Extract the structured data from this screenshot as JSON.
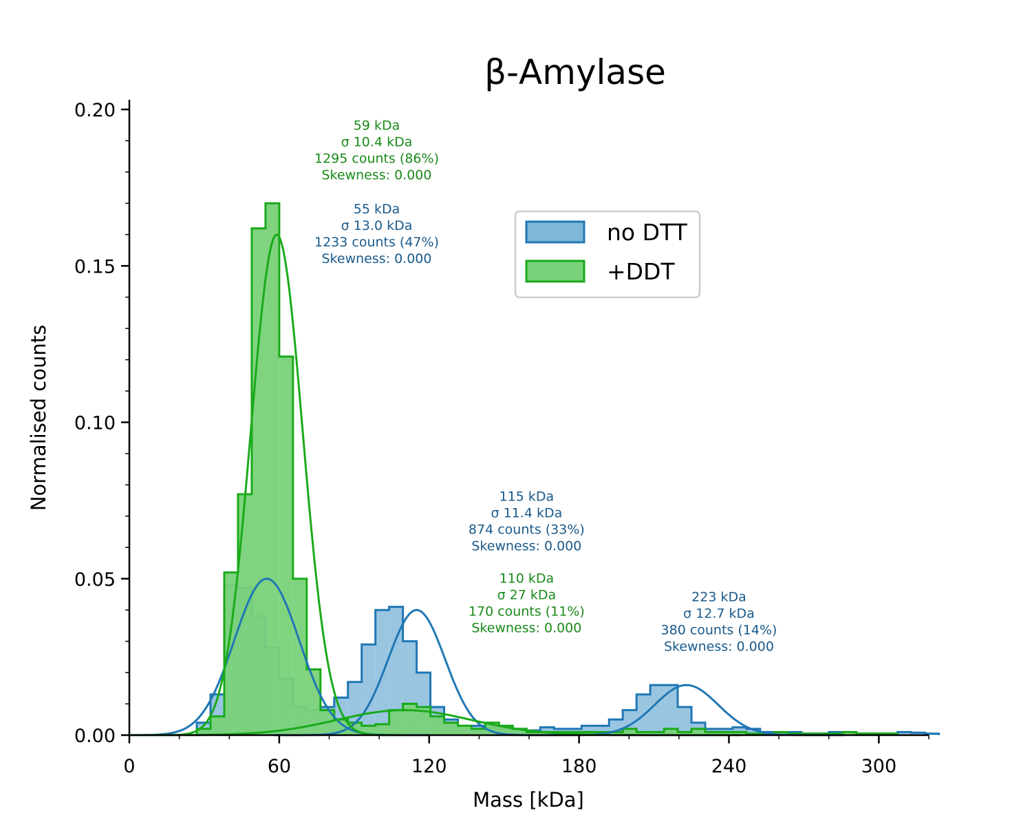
{
  "chart_data": {
    "type": "bar",
    "title": "β-Amylase",
    "xlabel": "Mass [kDa]",
    "ylabel": "Normalised counts",
    "xlim": [
      0,
      320
    ],
    "ylim": [
      0,
      0.2
    ],
    "x_ticks": [
      0,
      60,
      120,
      180,
      240,
      300
    ],
    "y_ticks": [
      0.0,
      0.05,
      0.1,
      0.15,
      0.2
    ],
    "y_tick_labels": [
      "0.00",
      "0.05",
      "0.10",
      "0.15",
      "0.20"
    ],
    "legend_position": "upper-center",
    "colors": {
      "no_dtt_fill": "#7fb6d9",
      "no_dtt_line": "#1f77b4",
      "ddt_fill": "#79d279",
      "ddt_line": "#1aaa1a",
      "no_dtt_text": "#1a5a8a",
      "ddt_text": "#1a8a1a"
    },
    "bin_width": 5.5,
    "series": [
      {
        "name": "no DTT",
        "key": "nodtt",
        "bin_start": 27,
        "values": [
          0.004,
          0.013,
          0.048,
          0.047,
          0.038,
          0.028,
          0.018,
          0.009,
          0.008,
          0.009,
          0.012,
          0.017,
          0.029,
          0.04,
          0.041,
          0.03,
          0.02,
          0.009,
          0.005,
          0.003,
          0.003,
          0.0025,
          0.002,
          0.002,
          0.0015,
          0.0025,
          0.002,
          0.002,
          0.003,
          0.003,
          0.005,
          0.008,
          0.013,
          0.016,
          0.016,
          0.009,
          0.004,
          0.002,
          0.002,
          0.0025,
          0.002,
          0.001,
          0.001,
          0.001,
          0.0005,
          0.0005,
          0.001,
          0.001,
          0.0005,
          0.0005,
          0.0005,
          0.001,
          0.0008,
          0.0005
        ]
      },
      {
        "name": "+DDT",
        "key": "ddt",
        "bin_start": 27,
        "values": [
          0.002,
          0.006,
          0.052,
          0.077,
          0.162,
          0.17,
          0.121,
          0.05,
          0.021,
          0.008,
          0.005,
          0.004,
          0.003,
          0.0035,
          0.008,
          0.01,
          0.009,
          0.006,
          0.004,
          0.003,
          0.002,
          0.004,
          0.003,
          0.002,
          0.001,
          0.001,
          0.001,
          0.001,
          0.001,
          0.001,
          0.001,
          0.002,
          0.001,
          0.001,
          0.002,
          0.001,
          0.002,
          0.001,
          0.001,
          0.001,
          0.0005,
          0.0005,
          0.001,
          0.0005,
          0.0005,
          0.0005,
          0.0005,
          0.001,
          0.0005,
          0.0005,
          0.0005
        ]
      }
    ],
    "fits": [
      {
        "series": "nodtt",
        "components": [
          {
            "mu": 55,
            "sigma": 13.0,
            "amp": 0.05
          },
          {
            "mu": 115,
            "sigma": 11.4,
            "amp": 0.04
          },
          {
            "mu": 223,
            "sigma": 12.7,
            "amp": 0.016
          }
        ]
      },
      {
        "series": "ddt",
        "components": [
          {
            "mu": 59,
            "sigma": 10.4,
            "amp": 0.16
          },
          {
            "mu": 110,
            "sigma": 27,
            "amp": 0.008
          }
        ]
      }
    ],
    "annotations": [
      {
        "series": "ddt",
        "x": 99,
        "y": 0.1935,
        "lines": [
          "59 kDa",
          "σ 10.4 kDa",
          "1295 counts (86%)",
          "Skewness: 0.000"
        ]
      },
      {
        "series": "nodtt",
        "x": 99,
        "y": 0.1668,
        "lines": [
          "55 kDa",
          "σ 13.0 kDa",
          "1233 counts (47%)",
          "Skewness: 0.000"
        ]
      },
      {
        "series": "nodtt",
        "x": 159,
        "y": 0.0749,
        "lines": [
          "115 kDa",
          "σ 11.4 kDa",
          "874 counts (33%)",
          "Skewness: 0.000"
        ]
      },
      {
        "series": "ddt",
        "x": 159,
        "y": 0.0487,
        "lines": [
          "110 kDa",
          "σ 27 kDa",
          "170 counts (11%)",
          "Skewness: 0.000"
        ]
      },
      {
        "series": "nodtt",
        "x": 236,
        "y": 0.0428,
        "lines": [
          "223 kDa",
          "σ 12.7 kDa",
          "380 counts (14%)",
          "Skewness: 0.000"
        ]
      }
    ],
    "legend": [
      {
        "key": "nodtt",
        "label": "no DTT"
      },
      {
        "key": "ddt",
        "label": "+DDT"
      }
    ]
  }
}
